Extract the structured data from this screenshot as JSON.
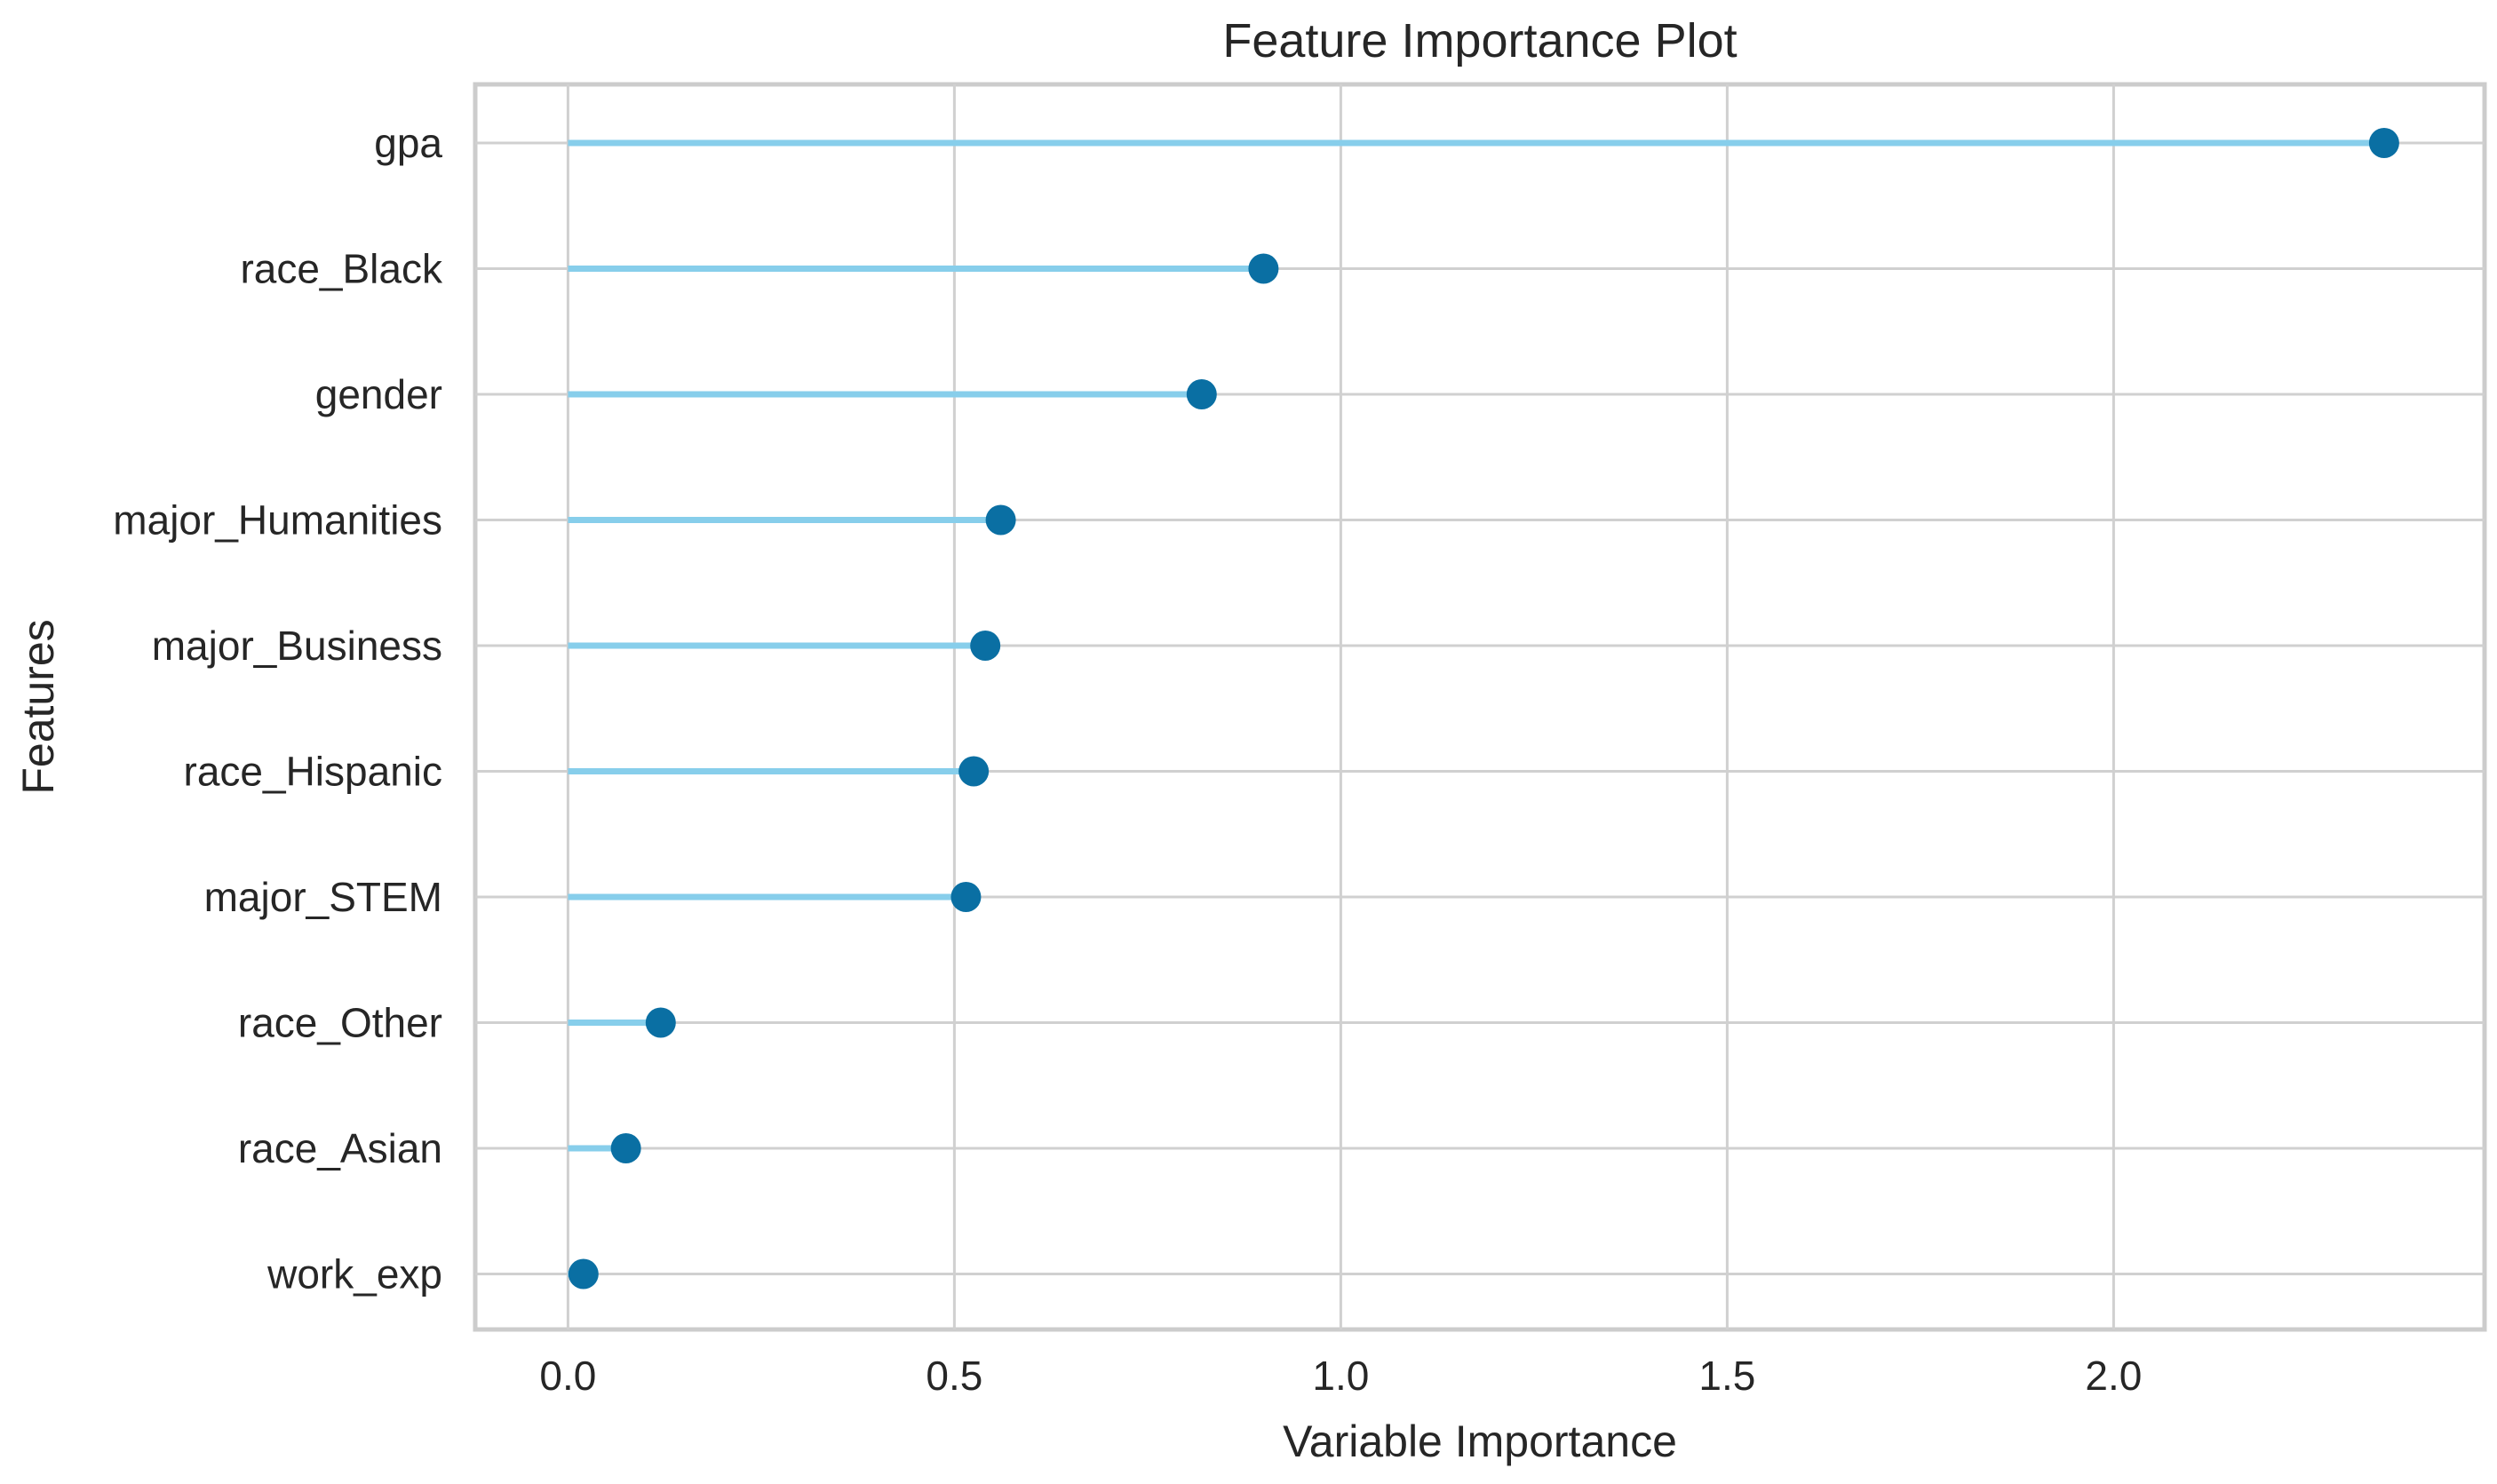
{
  "chart_data": {
    "type": "lollipop",
    "title": "Feature Importance Plot",
    "xlabel": "Variable Importance",
    "ylabel": "Features",
    "xlim": [
      -0.12,
      2.48
    ],
    "x_ticks": [
      0.0,
      0.5,
      1.0,
      1.5,
      2.0
    ],
    "x_tick_labels": [
      "0.0",
      "0.5",
      "1.0",
      "1.5",
      "2.0"
    ],
    "categories": [
      "gpa",
      "race_Black",
      "gender",
      "major_Humanities",
      "major_Business",
      "race_Hispanic",
      "major_STEM",
      "race_Other",
      "race_Asian",
      "work_exp"
    ],
    "values": [
      2.35,
      0.9,
      0.82,
      0.56,
      0.54,
      0.525,
      0.515,
      0.12,
      0.075,
      0.02
    ],
    "grid": true,
    "colors": {
      "stem": "#87ceeb",
      "marker": "#0a6fa3",
      "grid": "#d0d0d0",
      "frame": "#cccccc",
      "text": "#262626"
    }
  }
}
